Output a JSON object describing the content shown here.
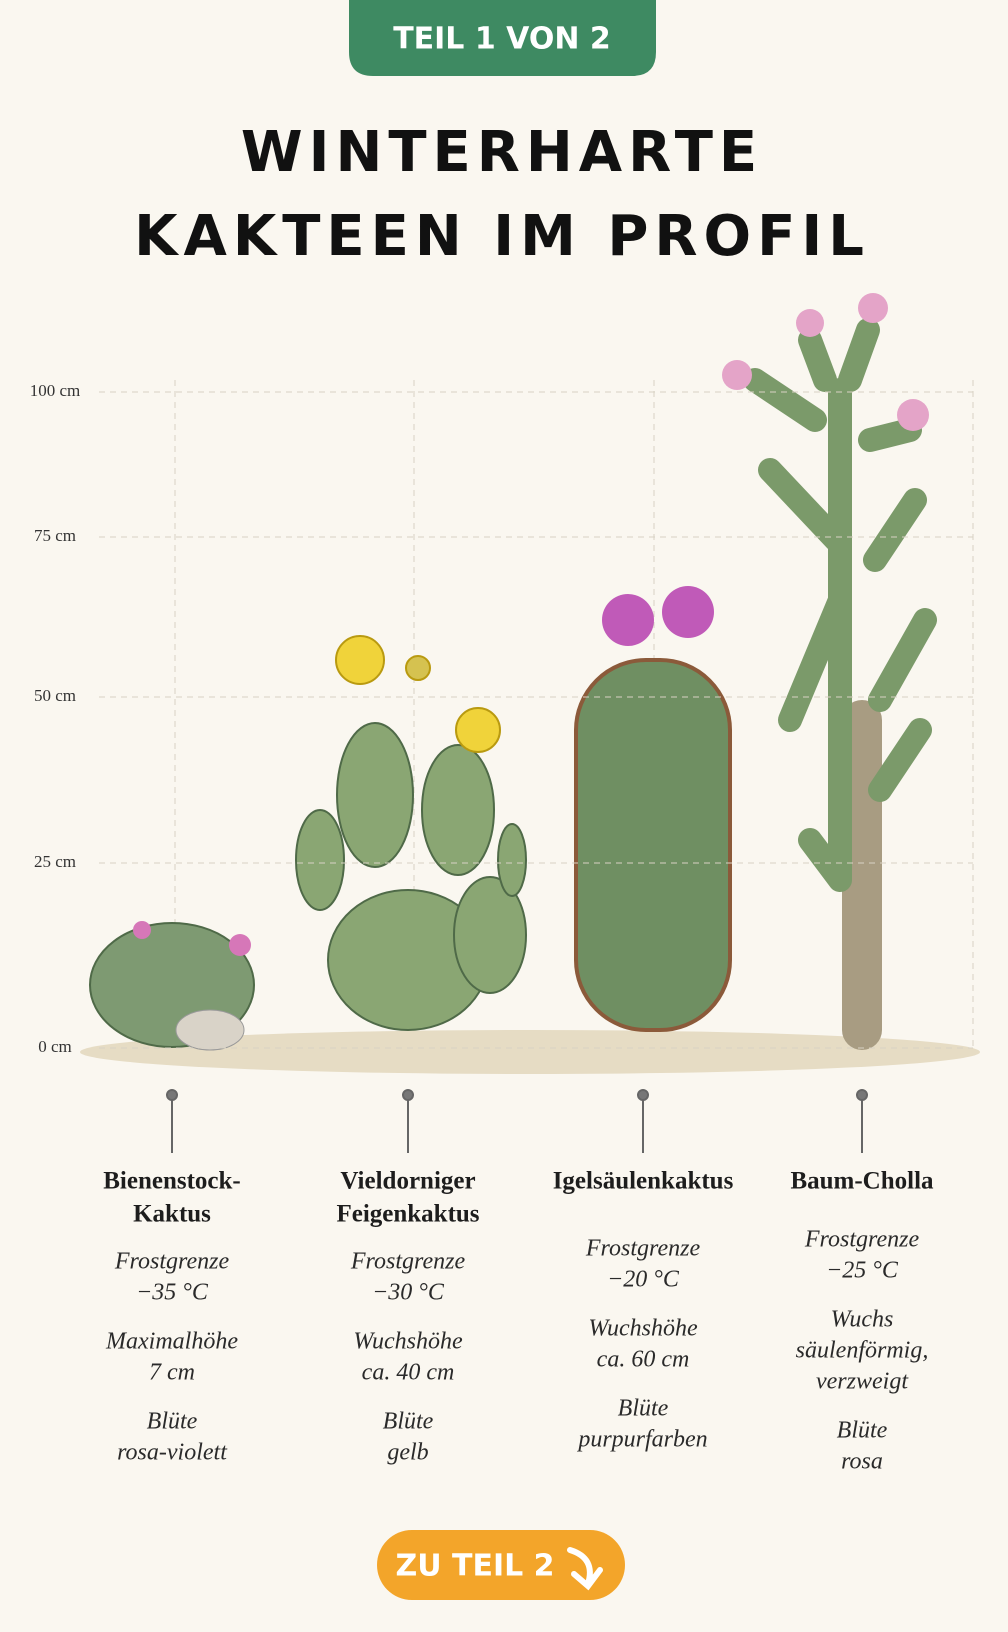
{
  "badge": "TEIL 1 VON 2",
  "title": [
    "WINTERHARTE",
    "KAKTEEN IM PROFIL"
  ],
  "scale": {
    "ticks": [
      "100 cm",
      "75 cm",
      "50 cm",
      "25 cm",
      "0 cm"
    ]
  },
  "plants": [
    {
      "name": [
        "Bienenstock-",
        "Kaktus"
      ],
      "facts": [
        [
          "Frostgrenze",
          "−35 °C"
        ],
        [
          "Maximalhöhe",
          "7 cm"
        ],
        [
          "Blüte",
          "rosa-violett"
        ]
      ]
    },
    {
      "name": [
        "Vieldorniger",
        "Feigenkaktus"
      ],
      "facts": [
        [
          "Frostgrenze",
          "−30 °C"
        ],
        [
          "Wuchshöhe",
          "ca. 40 cm"
        ],
        [
          "Blüte",
          "gelb"
        ]
      ]
    },
    {
      "name": [
        "Igelsäulenkaktus"
      ],
      "facts": [
        [
          "Frostgrenze",
          "−20 °C"
        ],
        [
          "Wuchshöhe",
          "ca. 60 cm"
        ],
        [
          "Blüte",
          "purpurfarben"
        ]
      ]
    },
    {
      "name": [
        "Baum-Cholla"
      ],
      "facts": [
        [
          "Frostgrenze",
          "−25 °C"
        ],
        [
          "Wuchs",
          "säulenförmig,",
          "verzweigt"
        ],
        [
          "Blüte",
          "rosa"
        ]
      ]
    }
  ],
  "button": "ZU TEIL 2"
}
